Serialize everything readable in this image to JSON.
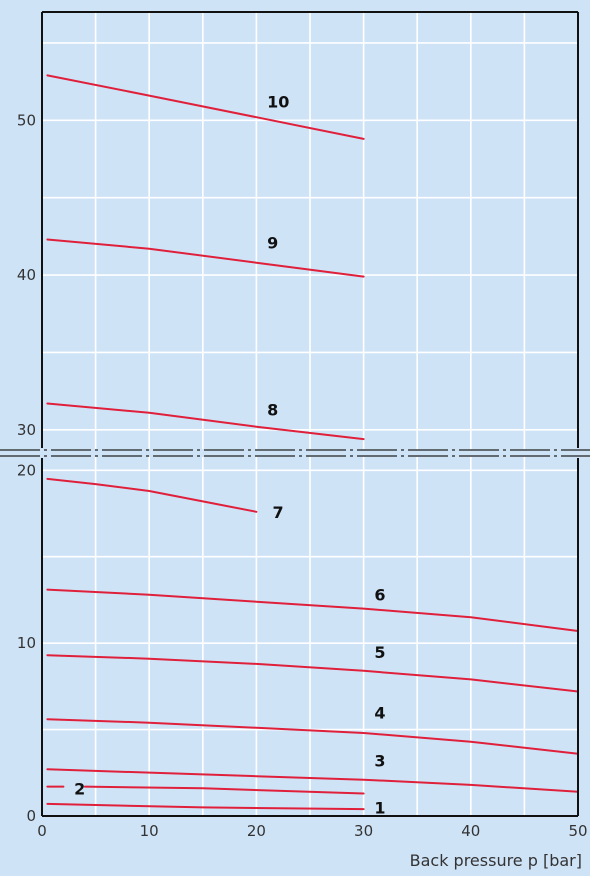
{
  "chart_data": {
    "type": "line",
    "title": "",
    "xlabel": "Back pressure p [bar]",
    "ylabel": "",
    "xlim": [
      0,
      50
    ],
    "x_ticks": [
      0,
      10,
      20,
      30,
      40,
      50
    ],
    "y_lower_range": [
      0,
      21
    ],
    "y_upper_range": [
      28.5,
      57
    ],
    "y_ticks_lower": [
      0,
      10,
      20
    ],
    "y_ticks_upper": [
      30,
      40,
      50
    ],
    "y_axis_break": true,
    "grid": true,
    "legend": "none",
    "colors": {
      "curve": "#e0203a",
      "grid": "#ffffff",
      "background": "#cfe3f7",
      "frame": "#111111"
    },
    "series": [
      {
        "name": "1",
        "x": [
          0.5,
          15,
          30
        ],
        "y": [
          0.7,
          0.5,
          0.4
        ],
        "label_at": [
          31,
          0.5
        ]
      },
      {
        "name": "2",
        "x": [
          0.5,
          2
        ],
        "y": [
          1.7,
          1.7
        ],
        "label_at": [
          3,
          1.6
        ]
      },
      {
        "name": "2",
        "x": [
          4,
          15,
          30
        ],
        "y": [
          1.7,
          1.6,
          1.3
        ],
        "label_at": null
      },
      {
        "name": "3",
        "x": [
          0.5,
          20,
          30,
          40,
          50
        ],
        "y": [
          2.7,
          2.3,
          2.1,
          1.8,
          1.4
        ],
        "label_at": [
          31,
          3.2
        ]
      },
      {
        "name": "4",
        "x": [
          0.5,
          10,
          20,
          30,
          40,
          50
        ],
        "y": [
          5.6,
          5.4,
          5.1,
          4.8,
          4.3,
          3.6
        ],
        "label_at": [
          31,
          6.0
        ]
      },
      {
        "name": "5",
        "x": [
          0.5,
          10,
          20,
          30,
          40,
          50
        ],
        "y": [
          9.3,
          9.1,
          8.8,
          8.4,
          7.9,
          7.2
        ],
        "label_at": [
          31,
          9.5
        ]
      },
      {
        "name": "6",
        "x": [
          0.5,
          10,
          20,
          30,
          40,
          50
        ],
        "y": [
          13.1,
          12.8,
          12.4,
          12.0,
          11.5,
          10.7
        ],
        "label_at": [
          31,
          12.8
        ]
      },
      {
        "name": "7",
        "x": [
          0.5,
          5,
          10,
          15,
          20
        ],
        "y": [
          19.5,
          19.2,
          18.8,
          18.2,
          17.6
        ],
        "label_at": [
          21.5,
          17.6
        ]
      },
      {
        "name": "8",
        "x": [
          0.5,
          10,
          20,
          30
        ],
        "y": [
          31.7,
          31.1,
          30.2,
          29.4
        ],
        "label_at": [
          21,
          31.3
        ]
      },
      {
        "name": "9",
        "x": [
          0.5,
          10,
          20,
          30
        ],
        "y": [
          42.3,
          41.7,
          40.8,
          39.9
        ],
        "label_at": [
          21,
          42.1
        ]
      },
      {
        "name": "10",
        "x": [
          0.5,
          10,
          20,
          30
        ],
        "y": [
          52.9,
          51.6,
          50.2,
          48.8
        ],
        "label_at": [
          21,
          51.2
        ]
      }
    ]
  }
}
